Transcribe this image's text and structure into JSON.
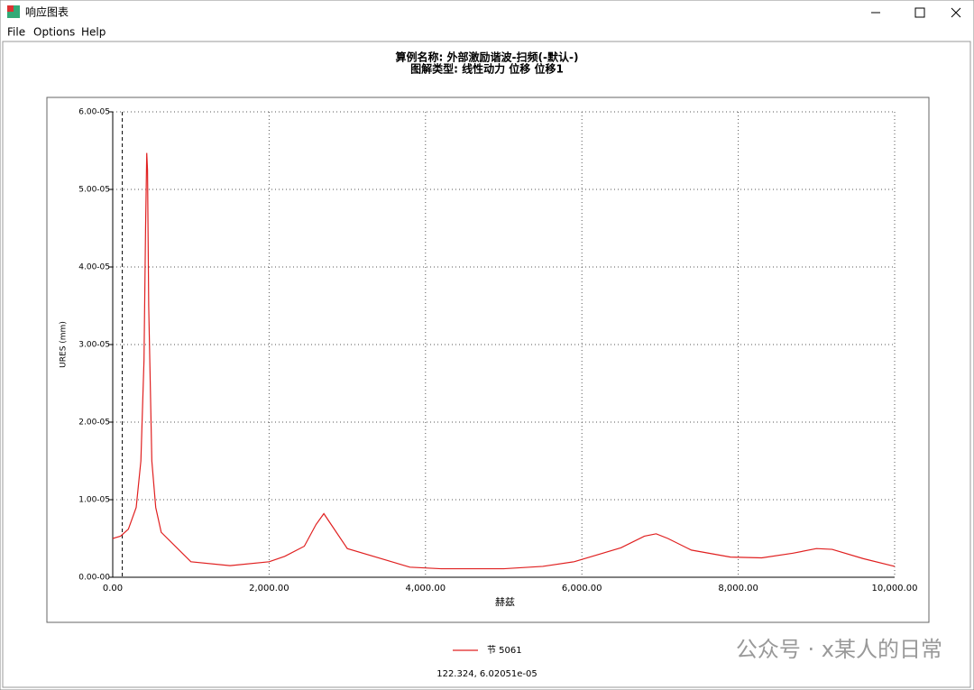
{
  "window": {
    "title": "响应图表",
    "menu": [
      "File",
      "Options",
      "Help"
    ],
    "watermark": "公众号 · x某人的日常"
  },
  "chart_data": {
    "type": "line",
    "title": "算例名称: 外部激励谐波-扫频(-默认-)",
    "subtitle": "图解类型: 线性动力 位移 位移1",
    "xlabel": "赫兹",
    "ylabel": "URES (mm)",
    "x": [
      0,
      100,
      200,
      300,
      360,
      400,
      420,
      435,
      445,
      460,
      500,
      550,
      620,
      1000,
      1500,
      2000,
      2200,
      2450,
      2600,
      2700,
      2800,
      3000,
      3500,
      3800,
      4200,
      5000,
      5500,
      5900,
      6500,
      6800,
      6950,
      7100,
      7400,
      7900,
      8300,
      8700,
      9000,
      9200,
      9600,
      10000
    ],
    "series": [
      {
        "name": "节 5061",
        "color": "#e02020",
        "values": [
          5e-06,
          5.3e-06,
          6.2e-06,
          9e-06,
          1.5e-05,
          2.8e-05,
          4.5e-05,
          5.47e-05,
          5.25e-05,
          3.5e-05,
          1.5e-05,
          9e-06,
          5.8e-06,
          2e-06,
          1.5e-06,
          2e-06,
          2.7e-06,
          4e-06,
          6.8e-06,
          8.2e-06,
          6.7e-06,
          3.7e-06,
          2.2e-06,
          1.3e-06,
          1.1e-06,
          1.1e-06,
          1.4e-06,
          2e-06,
          3.8e-06,
          5.3e-06,
          5.6e-06,
          5e-06,
          3.5e-06,
          2.6e-06,
          2.5e-06,
          3.1e-06,
          3.7e-06,
          3.6e-06,
          2.4e-06,
          1.4e-06
        ]
      }
    ],
    "xlim": [
      0,
      10000
    ],
    "ylim": [
      0,
      6e-05
    ],
    "xticks": [
      {
        "value": 0,
        "label": "0.00"
      },
      {
        "value": 2000,
        "label": "2,000.00"
      },
      {
        "value": 4000,
        "label": "4,000.00"
      },
      {
        "value": 6000,
        "label": "6,000.00"
      },
      {
        "value": 8000,
        "label": "8,000.00"
      },
      {
        "value": 10000,
        "label": "10,000.00"
      }
    ],
    "yticks": [
      {
        "value": 0,
        "label": "0.00-00"
      },
      {
        "value": 1e-05,
        "label": "1.00-05"
      },
      {
        "value": 2e-05,
        "label": "2.00-05"
      },
      {
        "value": 3e-05,
        "label": "3.00-05"
      },
      {
        "value": 4e-05,
        "label": "4.00-05"
      },
      {
        "value": 5e-05,
        "label": "5.00-05"
      },
      {
        "value": 6e-05,
        "label": "6.00-05"
      }
    ],
    "grid": true,
    "cursor": {
      "x": 122.324,
      "readout": "122.324, 6.02051e-05"
    }
  }
}
